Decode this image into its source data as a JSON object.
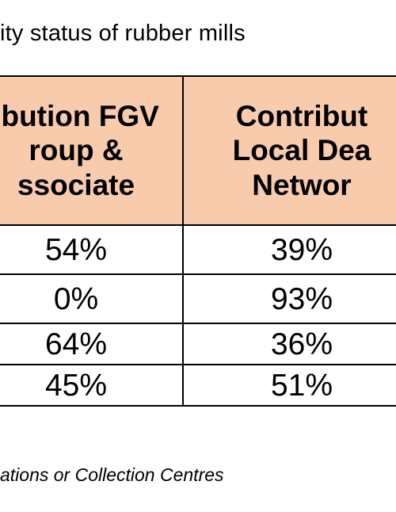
{
  "document": {
    "title": "ity status of rubber mills",
    "footnote": "ations or Collection Centres"
  },
  "table": {
    "headers": [
      "ibution FGV\nroup &\nssociate",
      "Contribut\nLocal Dea\nNetwor",
      ""
    ],
    "rows": [
      [
        "54%",
        "39%",
        ""
      ],
      [
        "0%",
        "93%",
        ""
      ],
      [
        "64%",
        "36%",
        ""
      ],
      [
        "45%",
        "51%",
        ""
      ]
    ]
  },
  "colors": {
    "header_fill": "#f8cbad",
    "border": "#000000"
  }
}
